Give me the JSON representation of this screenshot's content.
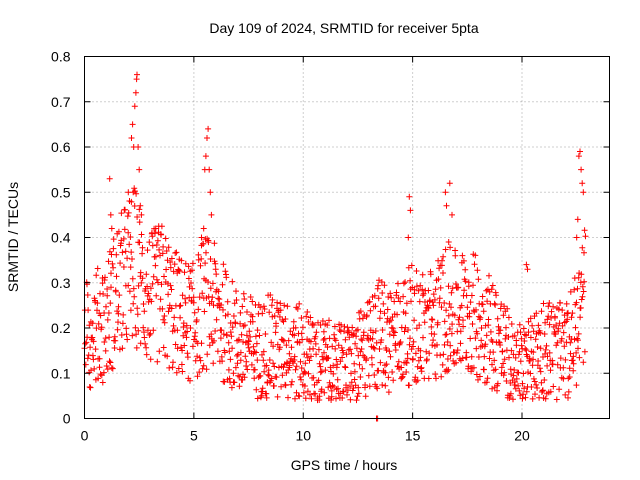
{
  "chart_data": {
    "type": "scatter",
    "title": "Day 109 of 2024, SRMTID for receiver 5pta",
    "xlabel": "GPS time / hours",
    "ylabel": "SRMTID / TECUs",
    "xlim": [
      0,
      24
    ],
    "ylim": [
      0,
      0.8
    ],
    "xticks": [
      0,
      5,
      10,
      15,
      20
    ],
    "xtick_labels": [
      "0",
      "5",
      "10",
      "15",
      "20"
    ],
    "yticks": [
      0,
      0.1,
      0.2,
      0.3,
      0.4,
      0.5,
      0.6,
      0.7,
      0.8
    ],
    "ytick_labels": [
      "0",
      "0.1",
      "0.2",
      "0.3",
      "0.4",
      "0.5",
      "0.6",
      "0.7",
      "0.8"
    ],
    "grid": true,
    "marker": "+",
    "color": "#ff0000",
    "trend": [
      [
        0.0,
        0.18
      ],
      [
        0.5,
        0.2
      ],
      [
        1.0,
        0.22
      ],
      [
        1.5,
        0.28
      ],
      [
        2.0,
        0.32
      ],
      [
        2.3,
        0.34
      ],
      [
        2.6,
        0.3
      ],
      [
        3.0,
        0.26
      ],
      [
        3.5,
        0.28
      ],
      [
        4.0,
        0.24
      ],
      [
        4.5,
        0.22
      ],
      [
        5.0,
        0.21
      ],
      [
        5.5,
        0.26
      ],
      [
        6.0,
        0.24
      ],
      [
        6.5,
        0.2
      ],
      [
        7.0,
        0.17
      ],
      [
        7.5,
        0.16
      ],
      [
        8.0,
        0.15
      ],
      [
        8.5,
        0.16
      ],
      [
        9.0,
        0.15
      ],
      [
        9.5,
        0.15
      ],
      [
        10.0,
        0.14
      ],
      [
        10.5,
        0.13
      ],
      [
        11.0,
        0.12
      ],
      [
        11.5,
        0.11
      ],
      [
        12.0,
        0.11
      ],
      [
        12.5,
        0.13
      ],
      [
        13.0,
        0.15
      ],
      [
        13.5,
        0.19
      ],
      [
        14.0,
        0.18
      ],
      [
        14.5,
        0.19
      ],
      [
        15.0,
        0.21
      ],
      [
        15.5,
        0.2
      ],
      [
        16.0,
        0.21
      ],
      [
        16.5,
        0.24
      ],
      [
        17.0,
        0.23
      ],
      [
        17.5,
        0.24
      ],
      [
        18.0,
        0.22
      ],
      [
        18.5,
        0.2
      ],
      [
        19.0,
        0.17
      ],
      [
        19.5,
        0.12
      ],
      [
        20.0,
        0.11
      ],
      [
        20.5,
        0.13
      ],
      [
        21.0,
        0.16
      ],
      [
        21.5,
        0.15
      ],
      [
        22.0,
        0.14
      ],
      [
        22.5,
        0.2
      ],
      [
        22.9,
        0.28
      ]
    ],
    "peaks": [
      {
        "x": 1.15,
        "y": 0.53
      },
      {
        "x": 1.2,
        "y": 0.45
      },
      {
        "x": 1.25,
        "y": 0.42
      },
      {
        "x": 2.15,
        "y": 0.62
      },
      {
        "x": 2.2,
        "y": 0.65
      },
      {
        "x": 2.25,
        "y": 0.6
      },
      {
        "x": 2.3,
        "y": 0.69
      },
      {
        "x": 2.35,
        "y": 0.72
      },
      {
        "x": 2.38,
        "y": 0.75
      },
      {
        "x": 2.4,
        "y": 0.76
      },
      {
        "x": 2.45,
        "y": 0.6
      },
      {
        "x": 2.5,
        "y": 0.55
      },
      {
        "x": 2.55,
        "y": 0.47
      },
      {
        "x": 2.6,
        "y": 0.45
      },
      {
        "x": 2.0,
        "y": 0.5
      },
      {
        "x": 5.5,
        "y": 0.55
      },
      {
        "x": 5.55,
        "y": 0.58
      },
      {
        "x": 5.6,
        "y": 0.62
      },
      {
        "x": 5.65,
        "y": 0.64
      },
      {
        "x": 5.7,
        "y": 0.55
      },
      {
        "x": 5.75,
        "y": 0.5
      },
      {
        "x": 5.8,
        "y": 0.45
      },
      {
        "x": 5.45,
        "y": 0.42
      },
      {
        "x": 5.35,
        "y": 0.4
      },
      {
        "x": 14.85,
        "y": 0.49
      },
      {
        "x": 14.9,
        "y": 0.46
      },
      {
        "x": 14.8,
        "y": 0.4
      },
      {
        "x": 16.5,
        "y": 0.5
      },
      {
        "x": 16.7,
        "y": 0.52
      },
      {
        "x": 16.55,
        "y": 0.47
      },
      {
        "x": 16.8,
        "y": 0.45
      },
      {
        "x": 16.65,
        "y": 0.39
      },
      {
        "x": 22.6,
        "y": 0.58
      },
      {
        "x": 22.65,
        "y": 0.59
      },
      {
        "x": 22.7,
        "y": 0.55
      },
      {
        "x": 22.75,
        "y": 0.52
      },
      {
        "x": 22.55,
        "y": 0.44
      },
      {
        "x": 22.8,
        "y": 0.5
      },
      {
        "x": 22.5,
        "y": 0.4
      },
      {
        "x": 20.2,
        "y": 0.34
      },
      {
        "x": 20.25,
        "y": 0.33
      }
    ],
    "outliers": [
      {
        "x": 13.35,
        "y": 0.0
      },
      {
        "x": 13.4,
        "y": 0.0
      }
    ]
  }
}
